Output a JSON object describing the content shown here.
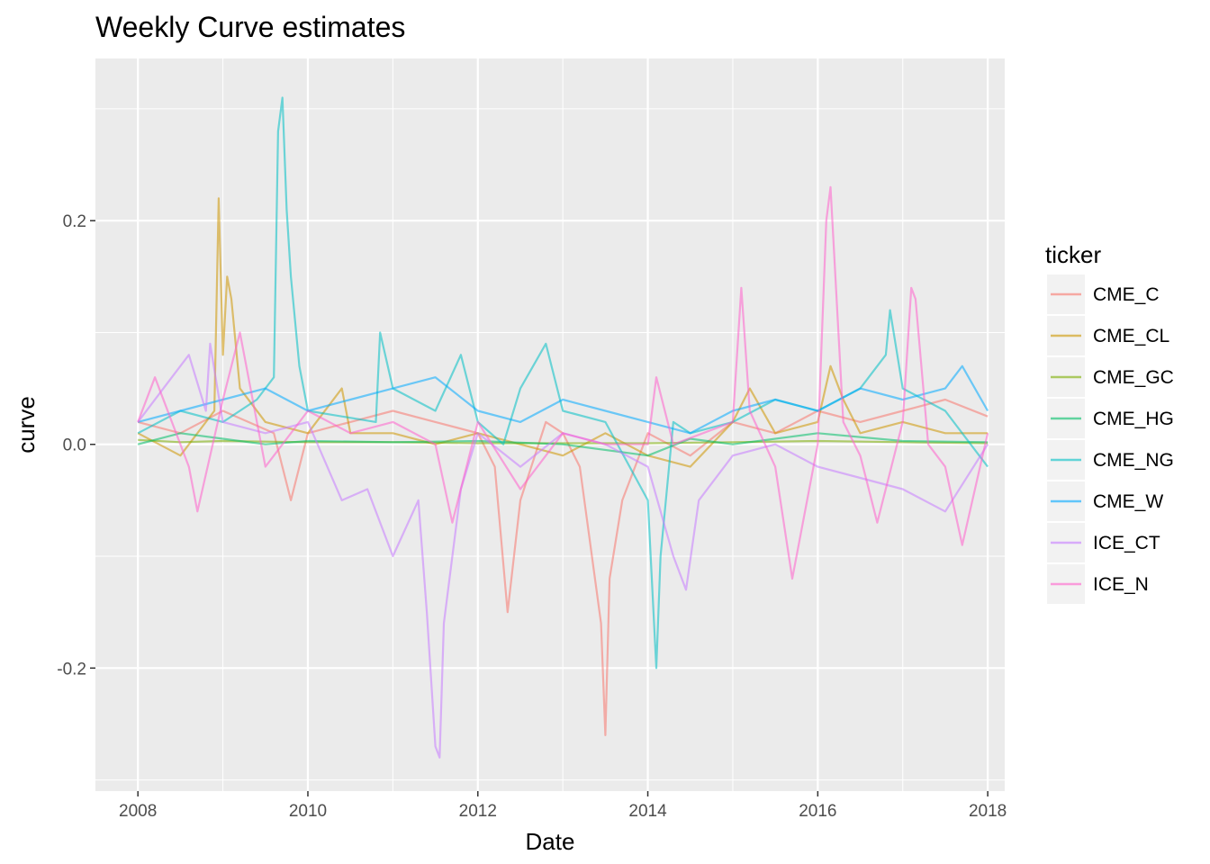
{
  "chart_data": {
    "type": "line",
    "title": "Weekly Curve estimates",
    "xlabel": "Date",
    "ylabel": "curve",
    "x_range": [
      2007.5,
      2018.2
    ],
    "ylim": [
      -0.31,
      0.345
    ],
    "x_ticks": [
      2008,
      2010,
      2012,
      2014,
      2016,
      2018
    ],
    "x_tick_labels": [
      "2008",
      "2010",
      "2012",
      "2014",
      "2016",
      "2018"
    ],
    "y_ticks": [
      -0.2,
      0.0,
      0.2
    ],
    "y_tick_labels": [
      "-0.2",
      "0.0",
      "0.2"
    ],
    "background": "#ebebeb",
    "grid": true,
    "legend_position": "right",
    "legend_title": "ticker",
    "series": [
      {
        "name": "CME_C",
        "color": "#f8766d",
        "x": [
          2008.0,
          2008.5,
          2009.0,
          2009.3,
          2009.6,
          2009.8,
          2010.0,
          2010.5,
          2011.0,
          2011.5,
          2012.0,
          2012.2,
          2012.35,
          2012.5,
          2012.8,
          2013.0,
          2013.2,
          2013.45,
          2013.5,
          2013.55,
          2013.7,
          2014.0,
          2014.5,
          2015.0,
          2015.5,
          2016.0,
          2016.5,
          2017.0,
          2017.5,
          2018.0
        ],
        "values": [
          0.02,
          0.01,
          0.03,
          0.02,
          0.01,
          -0.05,
          0.01,
          0.02,
          0.03,
          0.02,
          0.01,
          -0.02,
          -0.15,
          -0.05,
          0.02,
          0.01,
          -0.02,
          -0.16,
          -0.26,
          -0.12,
          -0.05,
          0.01,
          -0.01,
          0.02,
          0.01,
          0.03,
          0.02,
          0.03,
          0.04,
          0.025
        ]
      },
      {
        "name": "CME_CL",
        "color": "#cd9600",
        "x": [
          2008.0,
          2008.5,
          2008.9,
          2008.95,
          2009.0,
          2009.05,
          2009.1,
          2009.2,
          2009.5,
          2010.0,
          2010.4,
          2010.5,
          2011.0,
          2011.5,
          2012.0,
          2012.5,
          2013.0,
          2013.5,
          2014.0,
          2014.5,
          2015.0,
          2015.2,
          2015.5,
          2016.0,
          2016.15,
          2016.3,
          2016.5,
          2017.0,
          2017.5,
          2018.0
        ],
        "values": [
          0.01,
          -0.01,
          0.03,
          0.22,
          0.08,
          0.15,
          0.13,
          0.05,
          0.02,
          0.01,
          0.05,
          0.01,
          0.01,
          0.0,
          0.01,
          0.0,
          -0.01,
          0.01,
          -0.01,
          -0.02,
          0.02,
          0.05,
          0.01,
          0.02,
          0.07,
          0.04,
          0.01,
          0.02,
          0.01,
          0.01
        ]
      },
      {
        "name": "CME_GC",
        "color": "#7cae00",
        "x": [
          2008.0,
          2008.5,
          2009.0,
          2010.0,
          2011.0,
          2012.0,
          2013.0,
          2014.0,
          2015.0,
          2016.0,
          2017.0,
          2018.0
        ],
        "values": [
          0.004,
          0.002,
          0.003,
          0.002,
          0.002,
          0.001,
          0.001,
          0.001,
          0.002,
          0.003,
          0.002,
          0.001
        ]
      },
      {
        "name": "CME_HG",
        "color": "#00be67",
        "x": [
          2008.0,
          2008.5,
          2009.0,
          2009.5,
          2010.0,
          2011.0,
          2012.0,
          2013.0,
          2014.0,
          2014.5,
          2015.0,
          2016.0,
          2017.0,
          2018.0
        ],
        "values": [
          0.0,
          0.01,
          0.005,
          0.0,
          0.003,
          0.002,
          0.003,
          0.0,
          -0.01,
          0.005,
          0.0,
          0.01,
          0.003,
          0.002
        ]
      },
      {
        "name": "CME_NG",
        "color": "#00bfc4",
        "x": [
          2008.0,
          2008.5,
          2009.0,
          2009.4,
          2009.6,
          2009.65,
          2009.7,
          2009.75,
          2009.8,
          2009.9,
          2010.0,
          2010.8,
          2010.85,
          2011.0,
          2011.5,
          2011.8,
          2012.0,
          2012.3,
          2012.5,
          2012.8,
          2013.0,
          2013.5,
          2014.0,
          2014.1,
          2014.15,
          2014.3,
          2014.5,
          2015.0,
          2015.5,
          2016.0,
          2016.5,
          2016.8,
          2016.85,
          2017.0,
          2017.5,
          2018.0
        ],
        "values": [
          0.01,
          0.03,
          0.02,
          0.04,
          0.06,
          0.28,
          0.31,
          0.21,
          0.15,
          0.07,
          0.03,
          0.02,
          0.1,
          0.05,
          0.03,
          0.08,
          0.02,
          0.0,
          0.05,
          0.09,
          0.03,
          0.02,
          -0.05,
          -0.2,
          -0.1,
          0.02,
          0.01,
          0.02,
          0.04,
          0.03,
          0.05,
          0.08,
          0.12,
          0.05,
          0.03,
          -0.02
        ]
      },
      {
        "name": "CME_W",
        "color": "#00a9ff",
        "x": [
          2008.0,
          2008.5,
          2009.0,
          2009.5,
          2010.0,
          2010.5,
          2011.0,
          2011.5,
          2012.0,
          2012.5,
          2013.0,
          2013.5,
          2014.0,
          2014.5,
          2015.0,
          2015.5,
          2016.0,
          2016.5,
          2017.0,
          2017.5,
          2017.7,
          2018.0
        ],
        "values": [
          0.02,
          0.03,
          0.04,
          0.05,
          0.03,
          0.04,
          0.05,
          0.06,
          0.03,
          0.02,
          0.04,
          0.03,
          0.02,
          0.01,
          0.03,
          0.04,
          0.03,
          0.05,
          0.04,
          0.05,
          0.07,
          0.03
        ]
      },
      {
        "name": "ICE_CT",
        "color": "#c77cff",
        "x": [
          2008.0,
          2008.3,
          2008.6,
          2008.8,
          2008.85,
          2009.0,
          2009.5,
          2010.0,
          2010.4,
          2010.7,
          2011.0,
          2011.3,
          2011.4,
          2011.5,
          2011.55,
          2011.6,
          2011.8,
          2012.0,
          2012.5,
          2013.0,
          2013.5,
          2014.0,
          2014.3,
          2014.45,
          2014.6,
          2015.0,
          2015.5,
          2016.0,
          2016.5,
          2017.0,
          2017.5,
          2018.0
        ],
        "values": [
          0.02,
          0.05,
          0.08,
          0.03,
          0.09,
          0.02,
          0.01,
          0.02,
          -0.05,
          -0.04,
          -0.1,
          -0.05,
          -0.15,
          -0.27,
          -0.28,
          -0.16,
          -0.04,
          0.01,
          -0.02,
          0.01,
          0.0,
          -0.02,
          -0.1,
          -0.13,
          -0.05,
          -0.01,
          0.0,
          -0.02,
          -0.03,
          -0.04,
          -0.06,
          0.0
        ]
      },
      {
        "name": "ICE_N",
        "color": "#ff61cc",
        "x": [
          2008.0,
          2008.2,
          2008.6,
          2008.7,
          2009.0,
          2009.2,
          2009.5,
          2010.0,
          2010.5,
          2011.0,
          2011.5,
          2011.7,
          2012.0,
          2012.5,
          2013.0,
          2013.5,
          2014.0,
          2014.1,
          2014.3,
          2015.0,
          2015.1,
          2015.2,
          2015.5,
          2015.7,
          2016.0,
          2016.1,
          2016.15,
          2016.3,
          2016.5,
          2016.7,
          2017.0,
          2017.1,
          2017.15,
          2017.3,
          2017.5,
          2017.7,
          2018.0
        ],
        "values": [
          0.02,
          0.06,
          -0.02,
          -0.06,
          0.04,
          0.1,
          -0.02,
          0.03,
          0.01,
          0.02,
          0.0,
          -0.07,
          0.02,
          -0.04,
          0.01,
          0.0,
          0.0,
          0.06,
          0.0,
          0.02,
          0.14,
          0.03,
          -0.02,
          -0.12,
          0.0,
          0.2,
          0.23,
          0.02,
          -0.01,
          -0.07,
          0.02,
          0.14,
          0.13,
          0.0,
          -0.02,
          -0.09,
          0.01
        ]
      }
    ]
  }
}
